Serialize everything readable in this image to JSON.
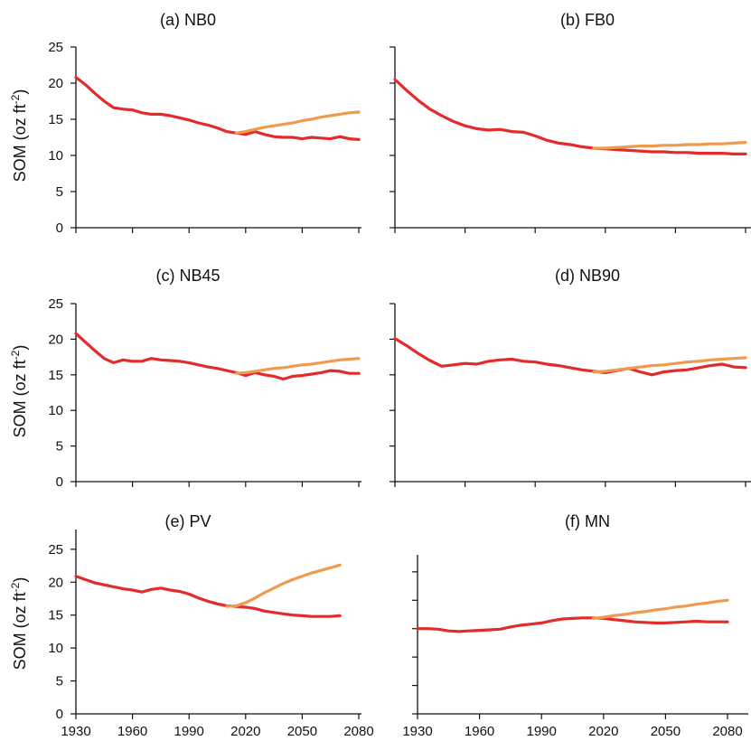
{
  "colors": {
    "baseline": "#e32b2b",
    "scenario": "#ef9a4c",
    "axis": "#111111"
  },
  "y_axis_label": "SOM (oz ft",
  "y_axis_label_sup": "-2",
  "y_axis_label_end": ")",
  "chart_data": [
    {
      "type": "line",
      "title": "(a) NB0",
      "xlim": [
        1930,
        2085
      ],
      "ylim": [
        0,
        25
      ],
      "y_ticks": [
        "0",
        "5",
        "10",
        "15",
        "20",
        "25"
      ],
      "x_tick_labels": [],
      "series": [
        {
          "color": "#e32b2b",
          "x": [
            1930,
            1935,
            1940,
            1945,
            1950,
            1955,
            1960,
            1965,
            1970,
            1975,
            1980,
            1985,
            1990,
            1995,
            2000,
            2005,
            2010,
            2015,
            2020,
            2025,
            2030,
            2035,
            2040,
            2045,
            2050,
            2055,
            2060,
            2065,
            2070,
            2075,
            2080
          ],
          "values": [
            20.8,
            19.8,
            18.6,
            17.5,
            16.6,
            16.4,
            16.3,
            15.9,
            15.7,
            15.7,
            15.5,
            15.2,
            14.9,
            14.5,
            14.2,
            13.8,
            13.3,
            13.1,
            12.9,
            13.3,
            12.9,
            12.6,
            12.5,
            12.5,
            12.3,
            12.5,
            12.4,
            12.3,
            12.6,
            12.3,
            12.2
          ]
        },
        {
          "color": "#ef9a4c",
          "x": [
            2015,
            2020,
            2025,
            2030,
            2035,
            2040,
            2045,
            2050,
            2055,
            2060,
            2065,
            2070,
            2075,
            2080
          ],
          "values": [
            13.1,
            13.3,
            13.6,
            13.9,
            14.1,
            14.3,
            14.5,
            14.8,
            15.0,
            15.3,
            15.5,
            15.7,
            15.9,
            16.0
          ]
        }
      ]
    },
    {
      "type": "line",
      "title": "(b) FB0",
      "xlim": [
        1930,
        2085
      ],
      "ylim": [
        0,
        25
      ],
      "y_ticks": [
        "",
        "",
        "",
        "",
        "",
        ""
      ],
      "x_tick_labels": [],
      "series": [
        {
          "color": "#e32b2b",
          "x": [
            1930,
            1935,
            1940,
            1945,
            1950,
            1955,
            1960,
            1965,
            1970,
            1975,
            1980,
            1985,
            1990,
            1995,
            2000,
            2005,
            2010,
            2015,
            2020,
            2025,
            2030,
            2035,
            2040,
            2045,
            2050,
            2055,
            2060,
            2065,
            2070,
            2075,
            2080
          ],
          "values": [
            20.5,
            19.0,
            17.6,
            16.4,
            15.5,
            14.7,
            14.1,
            13.7,
            13.5,
            13.6,
            13.3,
            13.2,
            12.7,
            12.1,
            11.7,
            11.5,
            11.2,
            11.0,
            10.9,
            10.8,
            10.7,
            10.6,
            10.5,
            10.5,
            10.4,
            10.4,
            10.3,
            10.3,
            10.3,
            10.2,
            10.2
          ]
        },
        {
          "color": "#ef9a4c",
          "x": [
            2015,
            2020,
            2025,
            2030,
            2035,
            2040,
            2045,
            2050,
            2055,
            2060,
            2065,
            2070,
            2075,
            2080
          ],
          "values": [
            11.0,
            11.0,
            11.1,
            11.2,
            11.3,
            11.3,
            11.4,
            11.4,
            11.5,
            11.5,
            11.6,
            11.6,
            11.7,
            11.8
          ]
        }
      ]
    },
    {
      "type": "line",
      "title": "(c) NB45",
      "xlim": [
        1930,
        2085
      ],
      "ylim": [
        0,
        25
      ],
      "y_ticks": [
        "0",
        "5",
        "10",
        "15",
        "20",
        "25"
      ],
      "x_tick_labels": [],
      "series": [
        {
          "color": "#e32b2b",
          "x": [
            1930,
            1935,
            1940,
            1945,
            1950,
            1955,
            1960,
            1965,
            1970,
            1975,
            1980,
            1985,
            1990,
            1995,
            2000,
            2005,
            2010,
            2015,
            2020,
            2025,
            2030,
            2035,
            2040,
            2045,
            2050,
            2055,
            2060,
            2065,
            2070,
            2075,
            2080
          ],
          "values": [
            20.8,
            19.6,
            18.4,
            17.3,
            16.7,
            17.1,
            16.9,
            16.9,
            17.3,
            17.1,
            17.0,
            16.9,
            16.7,
            16.4,
            16.1,
            15.9,
            15.6,
            15.3,
            14.9,
            15.3,
            15.0,
            14.8,
            14.4,
            14.8,
            14.9,
            15.1,
            15.3,
            15.6,
            15.5,
            15.2,
            15.2
          ]
        },
        {
          "color": "#ef9a4c",
          "x": [
            2015,
            2020,
            2025,
            2030,
            2035,
            2040,
            2045,
            2050,
            2055,
            2060,
            2065,
            2070,
            2075,
            2080
          ],
          "values": [
            15.2,
            15.3,
            15.5,
            15.7,
            15.9,
            16.0,
            16.2,
            16.4,
            16.5,
            16.7,
            16.9,
            17.1,
            17.2,
            17.3
          ]
        }
      ]
    },
    {
      "type": "line",
      "title": "(d) NB90",
      "xlim": [
        1930,
        2085
      ],
      "ylim": [
        0,
        25
      ],
      "y_ticks": [
        "",
        "",
        "",
        "",
        "",
        ""
      ],
      "x_tick_labels": [],
      "series": [
        {
          "color": "#e32b2b",
          "x": [
            1930,
            1935,
            1940,
            1945,
            1950,
            1955,
            1960,
            1965,
            1970,
            1975,
            1980,
            1985,
            1990,
            1995,
            2000,
            2005,
            2010,
            2015,
            2020,
            2025,
            2030,
            2035,
            2040,
            2045,
            2050,
            2055,
            2060,
            2065,
            2070,
            2075,
            2080
          ],
          "values": [
            20.1,
            19.1,
            18.0,
            17.0,
            16.2,
            16.4,
            16.6,
            16.5,
            16.9,
            17.1,
            17.2,
            16.9,
            16.8,
            16.5,
            16.3,
            16.0,
            15.7,
            15.5,
            15.3,
            15.6,
            15.9,
            15.4,
            15.0,
            15.4,
            15.6,
            15.7,
            16.0,
            16.3,
            16.5,
            16.1,
            16.0
          ]
        },
        {
          "color": "#ef9a4c",
          "x": [
            2015,
            2020,
            2025,
            2030,
            2035,
            2040,
            2045,
            2050,
            2055,
            2060,
            2065,
            2070,
            2075,
            2080
          ],
          "values": [
            15.4,
            15.5,
            15.7,
            15.9,
            16.1,
            16.3,
            16.4,
            16.6,
            16.8,
            16.9,
            17.1,
            17.2,
            17.3,
            17.4
          ]
        }
      ]
    },
    {
      "type": "line",
      "title": "(e) PV",
      "xlim": [
        1930,
        2085
      ],
      "ylim": [
        0,
        28
      ],
      "y_ticks": [
        "0",
        "5",
        "10",
        "15",
        "20",
        "25"
      ],
      "x_tick_labels": [
        "1930",
        "1960",
        "1990",
        "2020",
        "2050",
        "2080"
      ],
      "series": [
        {
          "color": "#e32b2b",
          "x": [
            1930,
            1935,
            1940,
            1945,
            1950,
            1955,
            1960,
            1965,
            1970,
            1975,
            1980,
            1985,
            1990,
            1995,
            2000,
            2005,
            2010,
            2015,
            2020,
            2025,
            2030,
            2035,
            2040,
            2045,
            2050,
            2055,
            2060,
            2065,
            2070
          ],
          "values": [
            20.9,
            20.4,
            19.9,
            19.6,
            19.3,
            19.0,
            18.8,
            18.5,
            18.9,
            19.1,
            18.8,
            18.6,
            18.2,
            17.6,
            17.1,
            16.7,
            16.4,
            16.3,
            16.2,
            16.0,
            15.6,
            15.4,
            15.2,
            15.0,
            14.9,
            14.8,
            14.8,
            14.8,
            14.9
          ]
        },
        {
          "color": "#ef9a4c",
          "x": [
            2010,
            2015,
            2020,
            2025,
            2030,
            2035,
            2040,
            2045,
            2050,
            2055,
            2060,
            2065,
            2070
          ],
          "values": [
            16.3,
            16.4,
            16.9,
            17.6,
            18.4,
            19.1,
            19.8,
            20.4,
            20.9,
            21.4,
            21.8,
            22.2,
            22.6
          ]
        }
      ]
    },
    {
      "type": "line",
      "title": "(f) MN",
      "xlim": [
        1930,
        2085
      ],
      "ylim": [
        0,
        28
      ],
      "y_ticks": [
        "",
        "",
        "",
        "",
        "",
        ""
      ],
      "x_tick_labels": [
        "1930",
        "1960",
        "1990",
        "2020",
        "2050",
        "2080"
      ],
      "series": [
        {
          "color": "#e32b2b",
          "x": [
            1930,
            1935,
            1940,
            1945,
            1950,
            1955,
            1960,
            1965,
            1970,
            1975,
            1980,
            1985,
            1990,
            1995,
            2000,
            2005,
            2010,
            2015,
            2020,
            2025,
            2030,
            2035,
            2040,
            2045,
            2050,
            2055,
            2060,
            2065,
            2070,
            2075,
            2080
          ],
          "values": [
            15.0,
            15.0,
            14.9,
            14.6,
            14.5,
            14.6,
            14.7,
            14.8,
            14.9,
            15.3,
            15.6,
            15.8,
            16.0,
            16.4,
            16.7,
            16.8,
            16.9,
            16.9,
            16.8,
            16.6,
            16.4,
            16.2,
            16.1,
            16.0,
            16.0,
            16.1,
            16.2,
            16.3,
            16.2,
            16.2,
            16.2
          ]
        },
        {
          "color": "#ef9a4c",
          "x": [
            2015,
            2020,
            2025,
            2030,
            2035,
            2040,
            2045,
            2050,
            2055,
            2060,
            2065,
            2070,
            2075,
            2080
          ],
          "values": [
            16.8,
            17.0,
            17.3,
            17.5,
            17.8,
            18.0,
            18.3,
            18.5,
            18.8,
            19.0,
            19.3,
            19.5,
            19.8,
            20.0
          ]
        }
      ]
    }
  ]
}
